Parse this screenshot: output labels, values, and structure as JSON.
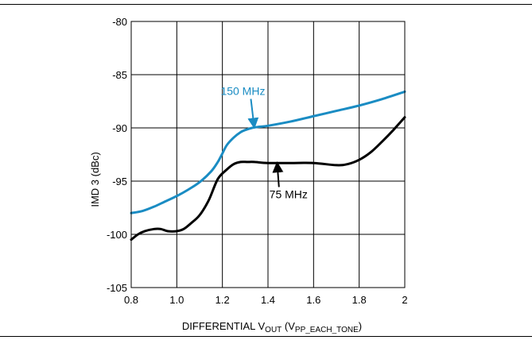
{
  "chart_data": {
    "type": "line",
    "ylabel": "IMD 3 (dBc)",
    "xlabel": {
      "prefix": "DIFFERENTIAL V",
      "sub1": "OUT",
      "mid": " (V",
      "sub2": "PP_EACH_TONE",
      "suffix": ")"
    },
    "xlim": [
      0.8,
      2.0
    ],
    "ylim": [
      -105,
      -80
    ],
    "x_ticks": [
      0.8,
      1.0,
      1.2,
      1.4,
      1.6,
      1.8,
      2.0
    ],
    "x_tick_labels": [
      "0.8",
      "1.0",
      "1.2",
      "1.4",
      "1.6",
      "1.8",
      "2"
    ],
    "y_ticks": [
      -80,
      -85,
      -90,
      -95,
      -100,
      -105
    ],
    "y_tick_labels": [
      "-80",
      "-85",
      "-90",
      "-95",
      "-100",
      "-105"
    ],
    "grid": true,
    "legend": "none",
    "series": [
      {
        "name": "150 MHz",
        "color": "#1a8cc3",
        "x": [
          0.8,
          0.85,
          0.9,
          0.95,
          1.0,
          1.05,
          1.1,
          1.15,
          1.18,
          1.2,
          1.22,
          1.25,
          1.28,
          1.3,
          1.33,
          1.36,
          1.4,
          1.5,
          1.6,
          1.7,
          1.8,
          1.9,
          2.0
        ],
        "y": [
          -98.0,
          -97.8,
          -97.4,
          -96.9,
          -96.4,
          -95.8,
          -95.1,
          -94.1,
          -93.2,
          -92.4,
          -91.6,
          -90.9,
          -90.4,
          -90.2,
          -90.0,
          -89.9,
          -89.8,
          -89.4,
          -88.9,
          -88.4,
          -87.9,
          -87.3,
          -86.6
        ]
      },
      {
        "name": "75 MHz",
        "color": "#000000",
        "x": [
          0.8,
          0.83,
          0.86,
          0.9,
          0.93,
          0.96,
          1.0,
          1.03,
          1.06,
          1.1,
          1.14,
          1.18,
          1.22,
          1.25,
          1.28,
          1.31,
          1.34,
          1.4,
          1.5,
          1.6,
          1.7,
          1.75,
          1.8,
          1.85,
          1.9,
          1.95,
          2.0
        ],
        "y": [
          -100.5,
          -100.0,
          -99.7,
          -99.5,
          -99.5,
          -99.7,
          -99.7,
          -99.5,
          -99.0,
          -98.2,
          -96.8,
          -94.8,
          -93.9,
          -93.4,
          -93.2,
          -93.2,
          -93.2,
          -93.3,
          -93.3,
          -93.3,
          -93.5,
          -93.4,
          -93.0,
          -92.3,
          -91.3,
          -90.2,
          -89.0
        ]
      }
    ],
    "annotations": [
      {
        "text": "150 MHz",
        "color": "#1a8cc3",
        "label_x": 1.29,
        "label_y": -86.9,
        "arrow_to_x": 1.34,
        "arrow_to_y": -90.0
      },
      {
        "text": "75 MHz",
        "color": "#000000",
        "label_x": 1.49,
        "label_y": -96.6,
        "arrow_to_x": 1.44,
        "arrow_to_y": -93.25
      }
    ]
  }
}
